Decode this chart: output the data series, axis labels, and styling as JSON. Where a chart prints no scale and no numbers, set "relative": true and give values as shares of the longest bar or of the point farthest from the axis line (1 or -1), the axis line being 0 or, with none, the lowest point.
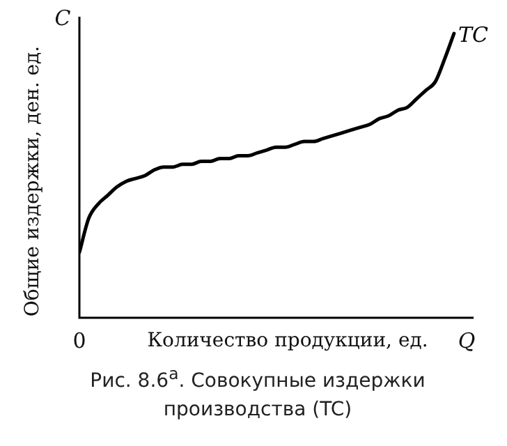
{
  "chart_data": {
    "type": "line",
    "title": "Рис. 8.6$^{а}$. Совокупные издержки производства (TC)",
    "xlabel": "Количество продукции, ед.",
    "ylabel": "Общие издержки, ден. ед.",
    "relative": true,
    "grid": false,
    "legend": false,
    "marker": "none",
    "line_style": "solid",
    "annotations": [
      "C",
      "0",
      "Q"
    ],
    "categories": [
      null,
      null,
      null,
      null,
      null,
      null,
      null,
      null,
      null,
      null,
      null,
      null,
      null,
      null,
      null,
      null,
      null,
      null,
      null,
      null,
      null,
      null,
      null,
      null,
      null,
      null,
      null,
      null,
      null,
      null,
      null,
      null,
      null,
      null,
      null,
      null,
      null,
      null,
      null,
      null,
      null
    ],
    "series": [
      {
        "name": "TC",
        "color": "#000000",
        "values": [
          0.23,
          0.35,
          0.4,
          0.43,
          0.46,
          0.48,
          0.49,
          0.5,
          0.52,
          0.53,
          0.53,
          0.54,
          0.54,
          0.55,
          0.55,
          0.56,
          0.56,
          0.57,
          0.57,
          0.58,
          0.59,
          0.6,
          0.6,
          0.61,
          0.62,
          0.62,
          0.63,
          0.64,
          0.65,
          0.66,
          0.67,
          0.68,
          0.7,
          0.71,
          0.73,
          0.74,
          0.77,
          0.8,
          0.83,
          0.91,
          1
        ]
      }
    ]
  }
}
